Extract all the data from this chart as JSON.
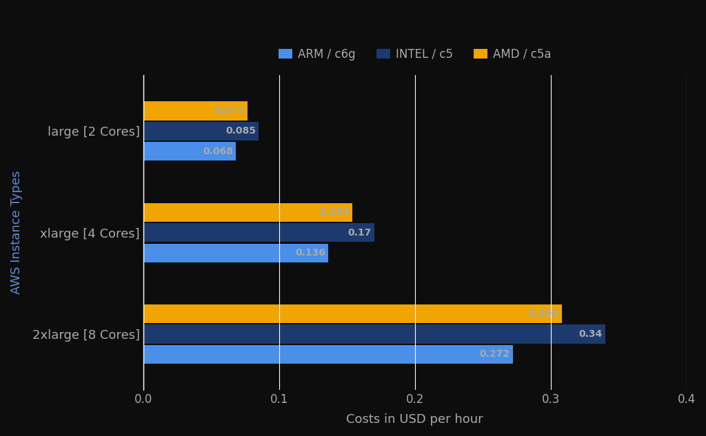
{
  "categories": [
    "large [2 Cores]",
    "xlarge [4 Cores]",
    "2xlarge [8 Cores]"
  ],
  "series": [
    {
      "label": "ARM / c6g",
      "color": "#4a8fe8",
      "values": [
        0.068,
        0.136,
        0.272
      ]
    },
    {
      "label": "INTEL / c5",
      "color": "#1c3a6e",
      "values": [
        0.085,
        0.17,
        0.34
      ]
    },
    {
      "label": "AMD / c5a",
      "color": "#f0a500",
      "values": [
        0.077,
        0.154,
        0.308
      ]
    }
  ],
  "xlabel": "Costs in USD per hour",
  "ylabel": "AWS Instance Types",
  "xlim": [
    0.0,
    0.4
  ],
  "xticks": [
    0.0,
    0.1,
    0.2,
    0.3,
    0.4
  ],
  "background_color": "#0d0d0d",
  "text_color": "#aaaaaa",
  "grid_color": "#ffffff",
  "bar_height": 0.2,
  "label_fontsize": 13,
  "tick_fontsize": 12,
  "value_fontsize": 10,
  "legend_fontsize": 12,
  "ylabel_color": "#5b8dd9"
}
